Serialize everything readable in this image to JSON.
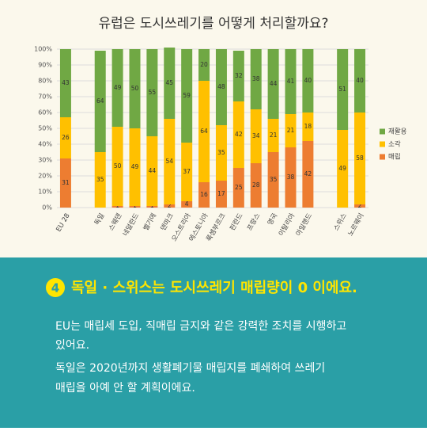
{
  "chart_data": {
    "type": "bar",
    "stacked": true,
    "title": "유럽은 도시쓰레기를 어떻게 처리할까요?",
    "categories": [
      "EU 28",
      null,
      "독일",
      "스웨덴",
      "네덜란드",
      "벨기에",
      "덴마크",
      "오스트리아",
      "에스토니아",
      "룩셈부르크",
      "핀란드",
      "프랑스",
      "영국",
      "이탈리아",
      "아일랜드",
      null,
      "스위스",
      "노르웨이"
    ],
    "series": [
      {
        "name": "매립",
        "color": "#ed7d31",
        "values": [
          31,
          null,
          null,
          1,
          1,
          1,
          2,
          4,
          16,
          17,
          25,
          28,
          35,
          38,
          42,
          null,
          null,
          2
        ]
      },
      {
        "name": "소각",
        "color": "#ffc000",
        "values": [
          26,
          null,
          35,
          50,
          49,
          44,
          54,
          37,
          64,
          35,
          42,
          34,
          21,
          21,
          18,
          null,
          49,
          58
        ]
      },
      {
        "name": "재활용",
        "color": "#70a844",
        "values": [
          43,
          null,
          64,
          49,
          50,
          55,
          45,
          59,
          20,
          48,
          32,
          38,
          44,
          41,
          40,
          null,
          51,
          40
        ]
      }
    ],
    "ylim": [
      0,
      100
    ],
    "yticks": [
      {
        "value": 0,
        "label": "0%"
      },
      {
        "value": 10,
        "label": "10%"
      },
      {
        "value": 20,
        "label": "20%"
      },
      {
        "value": 30,
        "label": "30%"
      },
      {
        "value": 40,
        "label": "40%"
      },
      {
        "value": 50,
        "label": "50%"
      },
      {
        "value": 60,
        "label": "60%"
      },
      {
        "value": 70,
        "label": "70%"
      },
      {
        "value": 80,
        "label": "80%"
      },
      {
        "value": 90,
        "label": "90%"
      },
      {
        "value": 100,
        "label": "100%"
      }
    ],
    "grid": true,
    "legend": "right"
  },
  "card": {
    "badge": "4",
    "heading": "독일 · 스위스는 도시쓰레기 매립량이 0 이에요.",
    "body": [
      "EU는 매립세 도입, 직매립 금지와 같은 강력한 조치를 시행하고",
      "있어요.",
      "독일은 2020년까지 생활폐기물 매립지를 폐쇄하여 쓰레기",
      "매립을 아예 안 할 계획이에요."
    ]
  }
}
